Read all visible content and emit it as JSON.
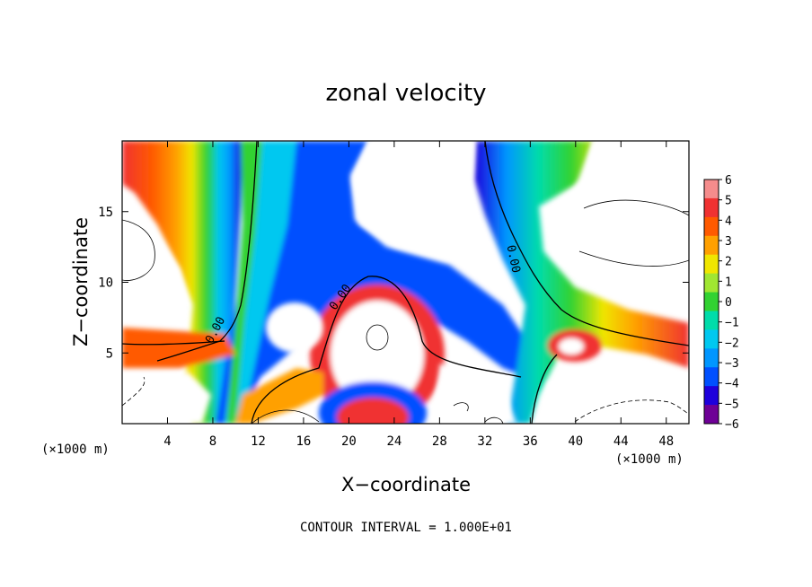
{
  "chart_data": {
    "type": "heatmap",
    "title": "zonal velocity",
    "xlabel": "X−coordinate",
    "ylabel": "Z−coordinate",
    "x_unit": "(×1000 m)",
    "y_unit": "(×1000 m)",
    "xlim": [
      0,
      50
    ],
    "ylim": [
      0,
      20
    ],
    "xticks": [
      4,
      8,
      12,
      16,
      20,
      24,
      28,
      32,
      36,
      40,
      44,
      48
    ],
    "yticks": [
      5,
      10,
      15
    ],
    "xtick_labels": [
      "4",
      "8",
      "12",
      "16",
      "20",
      "24",
      "28",
      "32",
      "36",
      "40",
      "44",
      "48"
    ],
    "ytick_labels": [
      "5",
      "10",
      "15"
    ],
    "colorbar": {
      "levels": [
        6,
        5,
        4,
        3,
        2,
        1,
        0,
        -1,
        -2,
        -3,
        -4,
        -5,
        -6
      ],
      "labels": [
        "6",
        "5",
        "4",
        "3",
        "2",
        "1",
        "0",
        "−1",
        "−2",
        "−3",
        "−4",
        "−5",
        "−6"
      ],
      "colors": [
        "#f58c8c",
        "#f03232",
        "#ff5a00",
        "#ffa000",
        "#f0e600",
        "#a0e632",
        "#32d232",
        "#00dcaa",
        "#00c8f0",
        "#0096ff",
        "#0050ff",
        "#1e00dc",
        "#6e0096"
      ]
    },
    "contour_labels": [
      {
        "text": "0.00",
        "x": 8.5,
        "z": 6.5,
        "angle": -62
      },
      {
        "text": "0.00",
        "x": 19.5,
        "z": 8.8,
        "angle": -55
      },
      {
        "text": "0.00",
        "x": 34.2,
        "z": 11.6,
        "angle": 78
      }
    ],
    "contour_interval_text": "CONTOUR INTERVAL = 1.000E+01",
    "grid": false,
    "legend": "colorbar-right"
  }
}
